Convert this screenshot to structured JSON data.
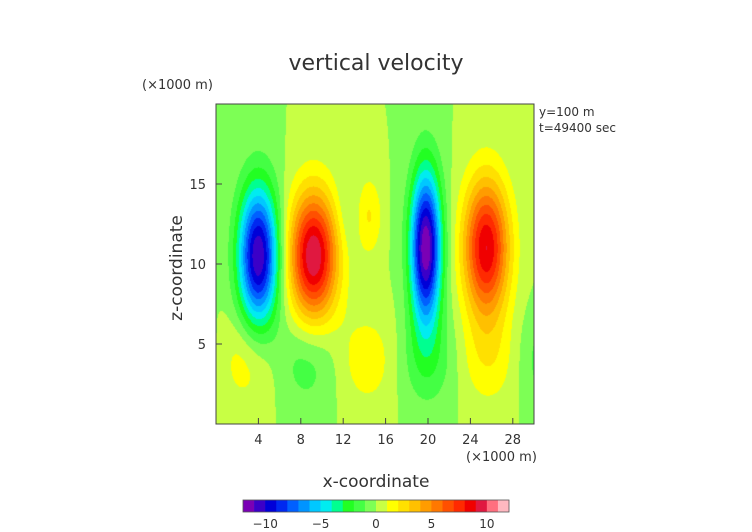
{
  "chart_data": {
    "type": "heatmap",
    "title": "vertical velocity",
    "xlabel": "x-coordinate",
    "ylabel": "z-coordinate",
    "x_unit": "(×1000 m)",
    "y_unit": "(×1000 m)",
    "annotations": [
      "y=100 m",
      "t=49400 sec"
    ],
    "xlim": [
      0,
      30
    ],
    "ylim": [
      0,
      20
    ],
    "x_ticks": [
      4,
      8,
      12,
      16,
      20,
      24,
      28
    ],
    "y_ticks": [
      5,
      10,
      15
    ],
    "colorbar": {
      "range": [
        -12,
        12
      ],
      "ticks": [
        -10,
        -5,
        0,
        5,
        10
      ],
      "colors": [
        "#7a00b5",
        "#3b00c8",
        "#0000d8",
        "#0028f0",
        "#0060ff",
        "#0094ff",
        "#00c8ff",
        "#00ecf0",
        "#00ff90",
        "#22ff22",
        "#44ff44",
        "#7dff55",
        "#c8ff44",
        "#ffff00",
        "#ffe000",
        "#ffc000",
        "#ff9c00",
        "#ff7800",
        "#ff5000",
        "#ff2a00",
        "#f00000",
        "#e01840",
        "#ff6f7f",
        "#ffb8c0"
      ]
    },
    "background_value": 0,
    "features": [
      {
        "name": "downdraft-1",
        "x": 4,
        "z": 10.5,
        "sx": 1.3,
        "sz": 3.0,
        "value": -11
      },
      {
        "name": "updraft-1",
        "x": 9.2,
        "z": 10.5,
        "sx": 1.6,
        "sz": 2.8,
        "value": 10
      },
      {
        "name": "downdraft-2",
        "x": 19.8,
        "z": 11,
        "sx": 1.0,
        "sz": 3.3,
        "value": -12
      },
      {
        "name": "updraft-2",
        "x": 25.5,
        "z": 11,
        "sx": 1.5,
        "sz": 3.0,
        "value": 9
      }
    ]
  }
}
